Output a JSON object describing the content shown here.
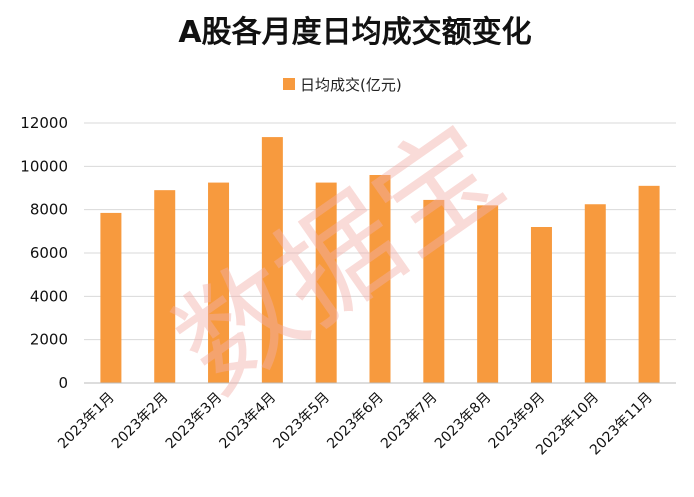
{
  "chart_data": {
    "type": "bar",
    "title": "A股各月度日均成交额变化",
    "legend": {
      "label": "日均成交(亿元)",
      "position": "top"
    },
    "categories": [
      "2023年1月",
      "2023年2月",
      "2023年3月",
      "2023年4月",
      "2023年5月",
      "2023年6月",
      "2023年7月",
      "2023年8月",
      "2023年9月",
      "2023年10月",
      "2023年11月"
    ],
    "series": [
      {
        "name": "日均成交(亿元)",
        "values": [
          7850,
          8900,
          9250,
          11350,
          9250,
          9600,
          8450,
          8200,
          7200,
          8250,
          9100
        ]
      }
    ],
    "yticks": [
      "0",
      "2000",
      "4000",
      "6000",
      "8000",
      "10000",
      "12000"
    ],
    "ylim": [
      0,
      12000
    ],
    "grid": true,
    "bar_color": "#f79a3e",
    "watermark": "数据宝"
  }
}
